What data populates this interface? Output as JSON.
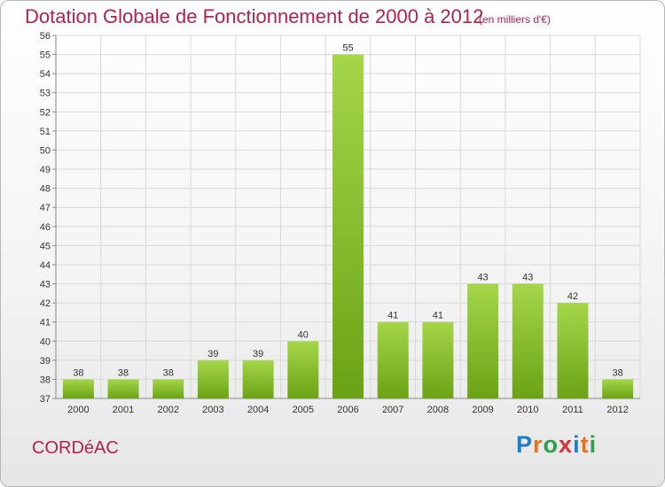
{
  "header": {
    "title": "Dotation Globale de Fonctionnement de 2000 à 2012",
    "subtitle": "(en milliers d'€)"
  },
  "footer": {
    "place_name": "CORDéAC",
    "logo_letters": [
      "P",
      "r",
      "o",
      "x",
      "i",
      "t",
      "i"
    ],
    "logo_colors": [
      "#1f7fc4",
      "#e8731c",
      "#2ea04b",
      "#d8333a",
      "#1f7fc4",
      "#e8731c",
      "#2ea04b"
    ]
  },
  "colors": {
    "title": "#b4224a",
    "bar_light": "#a6d64a",
    "bar_dark": "#6aa315",
    "grid": "#d9d9d9"
  },
  "chart_data": {
    "type": "bar",
    "title": "Dotation Globale de Fonctionnement de 2000 à 2012",
    "subtitle": "(en milliers d'€)",
    "categories": [
      "2000",
      "2001",
      "2002",
      "2003",
      "2004",
      "2005",
      "2006",
      "2007",
      "2008",
      "2009",
      "2010",
      "2011",
      "2012"
    ],
    "values": [
      38,
      38,
      38,
      39,
      39,
      40,
      55,
      41,
      41,
      43,
      43,
      42,
      38
    ],
    "ylim": [
      37,
      56
    ],
    "yticks": [
      37,
      38,
      39,
      40,
      41,
      42,
      43,
      44,
      45,
      46,
      47,
      48,
      49,
      50,
      51,
      52,
      53,
      54,
      55,
      56
    ],
    "grid": true,
    "legend": "none"
  }
}
